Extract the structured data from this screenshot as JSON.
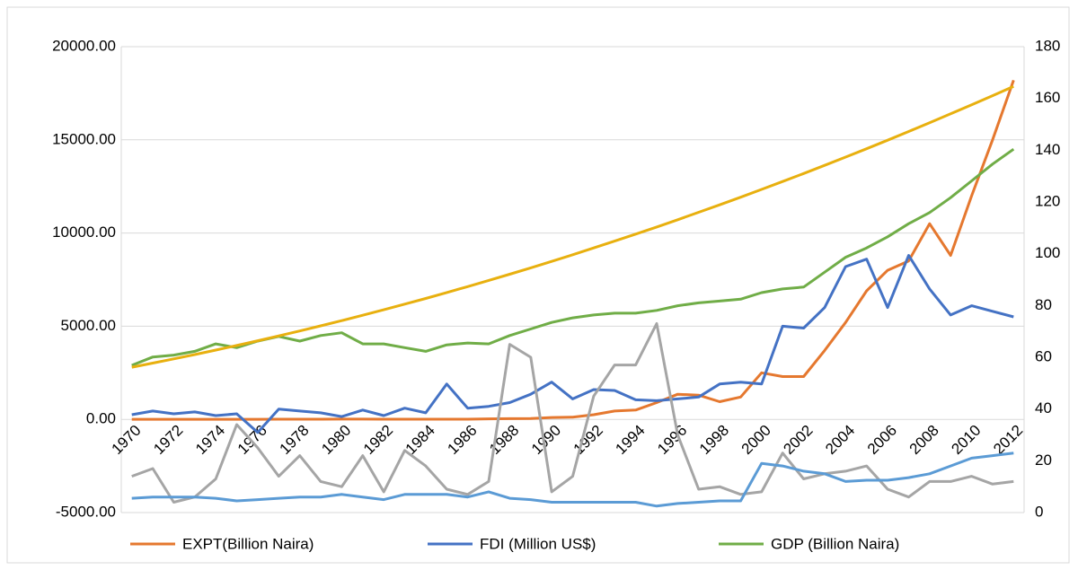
{
  "chart_data": {
    "type": "line",
    "categories": [
      "1970",
      null,
      "1972",
      null,
      "1974",
      null,
      "1976",
      null,
      "1978",
      null,
      "1980",
      null,
      "1982",
      null,
      "1984",
      null,
      "1986",
      null,
      "1988",
      null,
      "1990",
      null,
      "1992",
      null,
      "1994",
      null,
      "1996",
      null,
      "1998",
      null,
      "2000",
      null,
      "2002",
      null,
      "2004",
      null,
      "2006",
      null,
      "2008",
      null,
      "2010",
      null,
      "2012"
    ],
    "ylim": [
      -5000,
      20000
    ],
    "yticks": [
      {
        "value": -5000,
        "label": "-5000.00"
      },
      {
        "value": 0,
        "label": "0.00"
      },
      {
        "value": 5000,
        "label": "5000.00"
      },
      {
        "value": 10000,
        "label": "10000.00"
      },
      {
        "value": 15000,
        "label": "15000.00"
      },
      {
        "value": 20000,
        "label": "20000.00"
      }
    ],
    "y2lim": [
      0,
      180
    ],
    "y2ticks": [
      0,
      20,
      40,
      60,
      80,
      100,
      120,
      140,
      160,
      180
    ],
    "grid": true,
    "legend": "bottom",
    "series": [
      {
        "name": "EXPT(Billion Naira)",
        "color": "#e5782f",
        "values": [
          5,
          5,
          5,
          5,
          5,
          5,
          5,
          10,
          10,
          10,
          15,
          15,
          10,
          10,
          10,
          10,
          10,
          30,
          40,
          50,
          100,
          120,
          250,
          450,
          500,
          900,
          1350,
          1300,
          950,
          1200,
          2500,
          2300,
          2300,
          3700,
          5200,
          6900,
          8000,
          8500,
          10500,
          8800,
          12000,
          15000,
          18200
        ]
      },
      {
        "name": "FDI (Million US$)",
        "color": "#4472c4",
        "values": [
          250,
          450,
          300,
          400,
          200,
          300,
          -700,
          550,
          450,
          350,
          150,
          500,
          200,
          600,
          350,
          1900,
          600,
          700,
          900,
          1350,
          2000,
          1100,
          1600,
          1550,
          1050,
          1000,
          1100,
          1200,
          1900,
          2000,
          1900,
          5000,
          4900,
          6000,
          8200,
          8600,
          6000,
          8800,
          7000,
          5600,
          6100,
          5800,
          5500
        ]
      },
      {
        "name": "GDP (Billion Naira)",
        "color": "#70ad47",
        "values": [
          2900,
          3350,
          3450,
          3650,
          4050,
          3850,
          4200,
          4450,
          4200,
          4500,
          4650,
          4050,
          4050,
          3850,
          3650,
          4000,
          4100,
          4050,
          4500,
          4850,
          5200,
          5450,
          5600,
          5700,
          5700,
          5850,
          6100,
          6250,
          6350,
          6450,
          6800,
          7000,
          7100,
          7900,
          8700,
          9200,
          9800,
          10500,
          11100,
          11900,
          12800,
          13700,
          14500
        ]
      },
      {
        "color": "#e8b00f",
        "values": [
          2800,
          3019,
          3246,
          3479,
          3718,
          3965,
          4218,
          4479,
          4746,
          5019,
          5300,
          5588,
          5882,
          6183,
          6490,
          6805,
          7126,
          7455,
          7790,
          8131,
          8480,
          8835,
          9198,
          9567,
          9942,
          10325,
          10714,
          11111,
          11514,
          11923,
          12340,
          12763,
          13194,
          13631,
          14074,
          14525,
          14982,
          15447,
          15918,
          16395,
          16880,
          17371,
          17870
        ]
      },
      {
        "color": "#a5a5a5",
        "axis": "y2",
        "values": [
          14,
          17,
          4,
          6,
          13,
          34,
          25,
          14,
          22,
          12,
          10,
          22,
          8,
          24,
          18,
          9,
          7,
          12,
          65,
          60,
          8,
          14,
          45,
          57,
          57,
          73,
          30,
          9,
          10,
          7,
          8,
          23,
          13,
          15,
          16,
          18,
          9,
          6,
          12,
          12,
          14,
          11,
          12
        ]
      },
      {
        "color": "#5b9bd5",
        "axis": "y2",
        "values": [
          5.5,
          6,
          6,
          6,
          5.5,
          4.5,
          5,
          5.5,
          6,
          6,
          7,
          6,
          5,
          7,
          7,
          7,
          6,
          8,
          5.5,
          5,
          4,
          4,
          4,
          4,
          4,
          2.5,
          3.5,
          4,
          4.5,
          4.5,
          19,
          18,
          16,
          15,
          12,
          12.5,
          12.5,
          13.5,
          15,
          18,
          21,
          22,
          23
        ]
      }
    ]
  }
}
